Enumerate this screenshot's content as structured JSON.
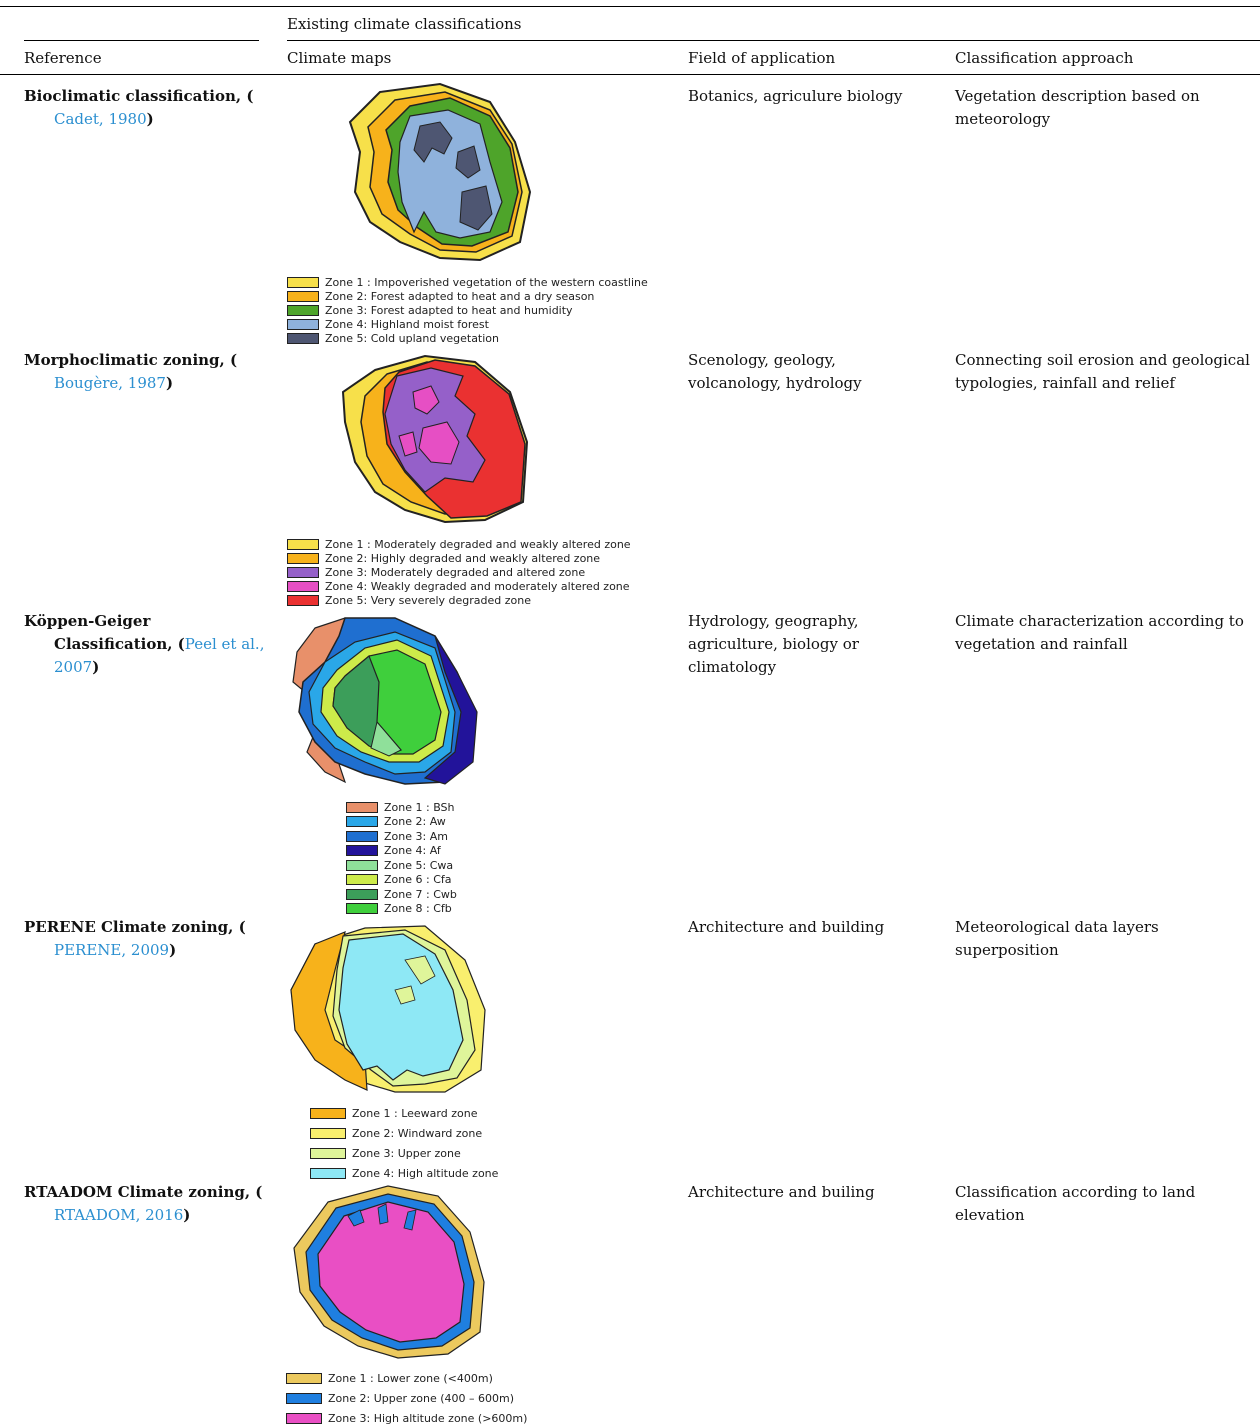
{
  "header": {
    "group_title": "Existing climate classifications",
    "columns": {
      "reference": "Reference",
      "maps": "Climate maps",
      "field": "Field of application",
      "approach": "Classification approach"
    }
  },
  "rows": [
    {
      "title": "Bioclimatic classification, (",
      "citation": "Cadet, 1980",
      "close": ")",
      "field": "Botanics, agriculure biology",
      "approach": "Vegetation description based on meteorology",
      "legend": [
        {
          "label": "Zone 1 : Impoverished vegetation of the western coastline",
          "color": "#f7e04a"
        },
        {
          "label": "Zone 2: Forest adapted to heat and a dry season",
          "color": "#f7b21b"
        },
        {
          "label": "Zone 3: Forest adapted to heat and humidity",
          "color": "#4ea42a"
        },
        {
          "label": "Zone 4: Highland moist forest",
          "color": "#8fb2dc"
        },
        {
          "label": "Zone 5: Cold upland vegetation",
          "color": "#4e5672"
        }
      ]
    },
    {
      "title": "Morphoclimatic zoning, (",
      "citation": "Bougère, 1987",
      "close": ")",
      "field": "Scenology, geology, volcanology, hydrology",
      "approach": "Connecting soil erosion and geological typologies, rainfall and relief",
      "legend": [
        {
          "label": "Zone 1 : Moderately degraded and weakly altered zone",
          "color": "#f7e04a"
        },
        {
          "label": "Zone 2: Highly degraded and weakly altered zone",
          "color": "#f7b21b"
        },
        {
          "label": "Zone 3: Moderately degraded and altered zone",
          "color": "#9560c9"
        },
        {
          "label": "Zone 4: Weakly degraded and moderately altered zone",
          "color": "#e64fc4"
        },
        {
          "label": "Zone 5: Very severely degraded zone",
          "color": "#ea3131"
        }
      ]
    },
    {
      "title_line1": "Köppen-Geiger",
      "title_line2": "Classification, (",
      "citation_a": "Peel et al.,",
      "citation_b": "2007",
      "close": ")",
      "field": "Hydrology, geography, agriculture, biology or climatology",
      "approach": "Climate characterization according to vegetation and rainfall",
      "legend": [
        {
          "label": "Zone 1 : BSh",
          "color": "#e8906a"
        },
        {
          "label": "Zone 2: Aw",
          "color": "#2aa7e8"
        },
        {
          "label": "Zone 3: Am",
          "color": "#1f6fd0"
        },
        {
          "label": "Zone 4: Af",
          "color": "#22139a"
        },
        {
          "label": "Zone 5: Cwa",
          "color": "#8fe09a"
        },
        {
          "label": "Zone 6 : Cfa",
          "color": "#cdeb4a"
        },
        {
          "label": "Zone 7 : Cwb",
          "color": "#3c9e5a"
        },
        {
          "label": "Zone 8 : Cfb",
          "color": "#3fcf3c"
        }
      ]
    },
    {
      "title": "PERENE Climate zoning, (",
      "citation": "PERENE, 2009",
      "close": ")",
      "field": "Architecture and building",
      "approach": "Meteorological data layers superposition",
      "legend": [
        {
          "label": "Zone 1 : Leeward zone",
          "color": "#f7b21b"
        },
        {
          "label": "Zone 2: Windward zone",
          "color": "#f9ef6e"
        },
        {
          "label": "Zone 3: Upper zone",
          "color": "#dff59a"
        },
        {
          "label": "Zone 4: High altitude zone",
          "color": "#8ee8f5"
        }
      ]
    },
    {
      "title": "RTAADOM Climate zoning, (",
      "citation": "RTAADOM, 2016",
      "close": ")",
      "field": "Architecture and builing",
      "approach": "Classification according to land elevation",
      "legend": [
        {
          "label": "Zone 1 : Lower zone (<400m)",
          "color": "#ecc95e"
        },
        {
          "label": "Zone 2: Upper zone (400 – 600m)",
          "color": "#1f7fe0"
        },
        {
          "label": "Zone 3: High altitude zone (>600m)",
          "color": "#e94fc4"
        }
      ]
    }
  ]
}
